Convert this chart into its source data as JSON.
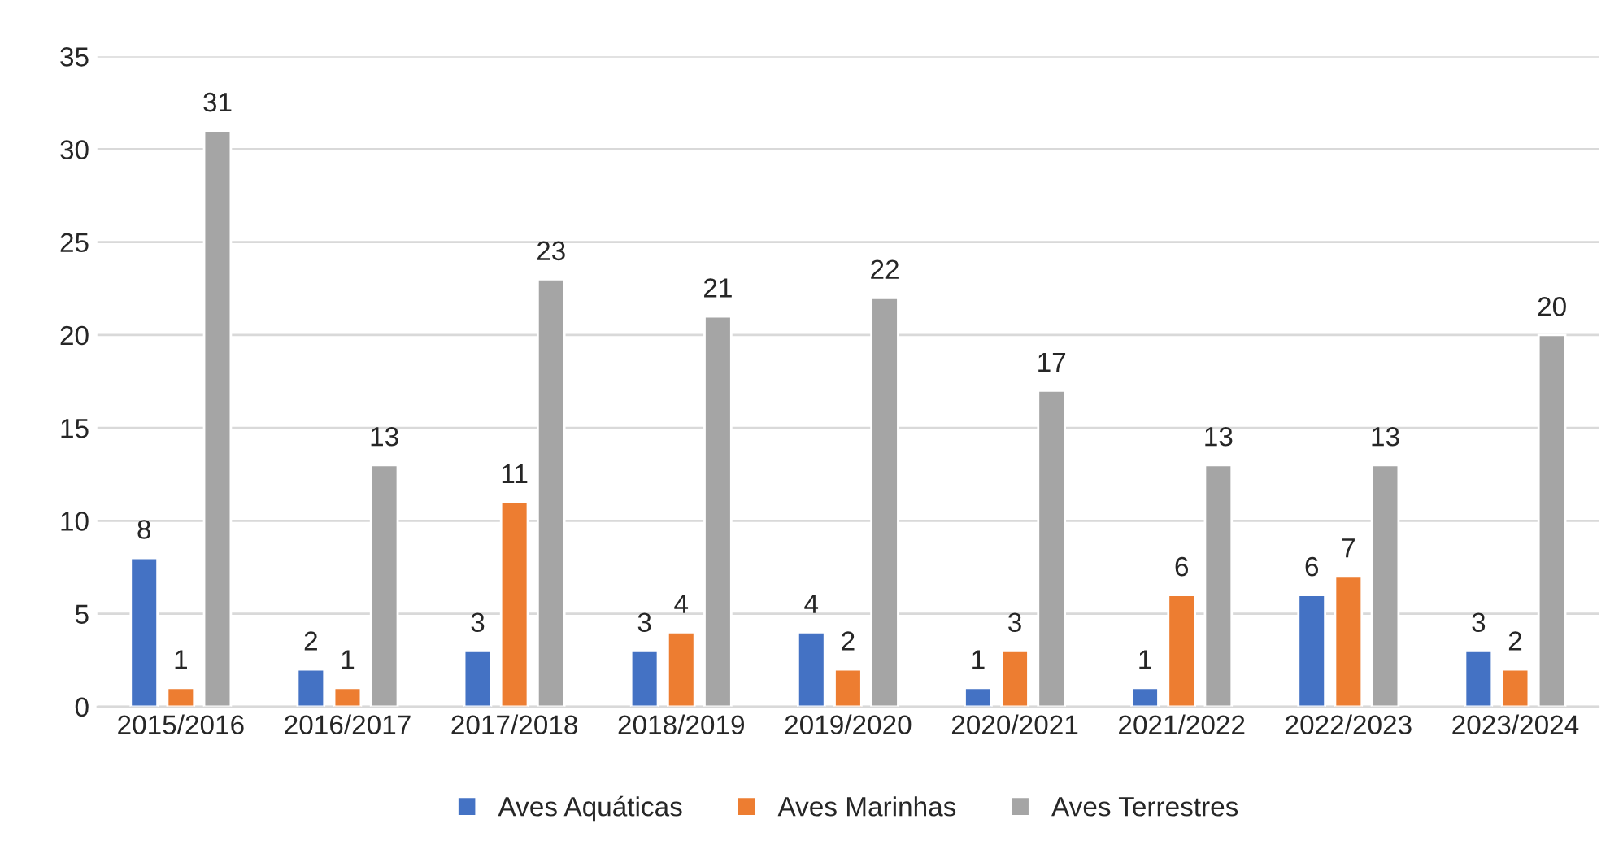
{
  "chart_data": {
    "type": "bar",
    "categories": [
      "2015/2016",
      "2016/2017",
      "2017/2018",
      "2018/2019",
      "2019/2020",
      "2020/2021",
      "2021/2022",
      "2022/2023",
      "2023/2024"
    ],
    "series": [
      {
        "name": "Aves Aquáticas",
        "color": "#4472c4",
        "values": [
          8,
          2,
          3,
          3,
          4,
          1,
          1,
          6,
          3
        ]
      },
      {
        "name": "Aves Marinhas",
        "color": "#ed7d31",
        "values": [
          1,
          1,
          11,
          4,
          2,
          3,
          6,
          7,
          2
        ]
      },
      {
        "name": "Aves Terrestres",
        "color": "#a5a5a5",
        "values": [
          31,
          13,
          23,
          21,
          22,
          17,
          13,
          13,
          20
        ]
      }
    ],
    "ylim": [
      0,
      35
    ],
    "yticks": [
      0,
      5,
      10,
      15,
      20,
      25,
      30,
      35
    ],
    "grid": "y",
    "legend": "bottom",
    "data_labels": true
  }
}
